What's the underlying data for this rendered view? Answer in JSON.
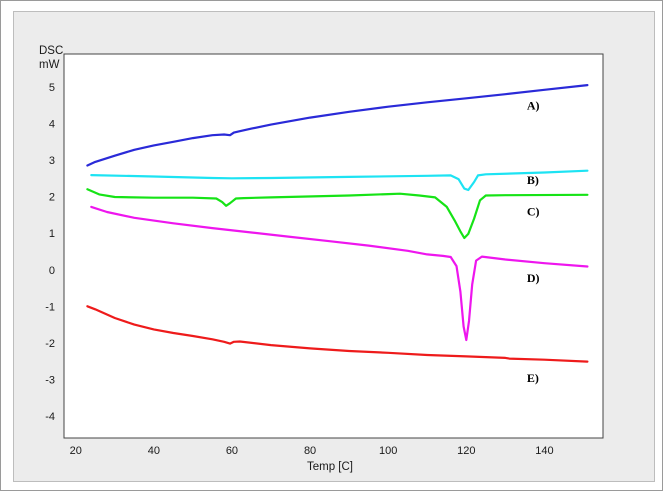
{
  "chart_data": {
    "type": "line",
    "title": "",
    "ylabel_line1": "DSC",
    "ylabel_line2": "mW",
    "xlabel": "Temp  [C]",
    "xlim": [
      17,
      155
    ],
    "ylim": [
      -4.6,
      5.9
    ],
    "xticks": [
      20,
      40,
      60,
      80,
      100,
      120,
      140
    ],
    "yticks": [
      -4,
      -3,
      -2,
      -1,
      0,
      1,
      2,
      3,
      4,
      5
    ],
    "grid": false,
    "series": [
      {
        "label": "A)",
        "color": "#2a2ad8",
        "points": [
          [
            23,
            2.85
          ],
          [
            25,
            2.95
          ],
          [
            30,
            3.12
          ],
          [
            35,
            3.28
          ],
          [
            40,
            3.4
          ],
          [
            45,
            3.5
          ],
          [
            50,
            3.6
          ],
          [
            55,
            3.68
          ],
          [
            58,
            3.7
          ],
          [
            59.5,
            3.68
          ],
          [
            60.5,
            3.75
          ],
          [
            62,
            3.79
          ],
          [
            65,
            3.86
          ],
          [
            70,
            3.97
          ],
          [
            80,
            4.16
          ],
          [
            90,
            4.32
          ],
          [
            100,
            4.46
          ],
          [
            110,
            4.58
          ],
          [
            120,
            4.69
          ],
          [
            130,
            4.8
          ],
          [
            140,
            4.92
          ],
          [
            151,
            5.05
          ]
        ]
      },
      {
        "label": "B)",
        "color": "#1de3f3",
        "points": [
          [
            24,
            2.59
          ],
          [
            40,
            2.55
          ],
          [
            55,
            2.51
          ],
          [
            60,
            2.5
          ],
          [
            70,
            2.51
          ],
          [
            90,
            2.54
          ],
          [
            110,
            2.57
          ],
          [
            116,
            2.58
          ],
          [
            118,
            2.48
          ],
          [
            119.5,
            2.22
          ],
          [
            120.5,
            2.18
          ],
          [
            122,
            2.4
          ],
          [
            123,
            2.58
          ],
          [
            125,
            2.61
          ],
          [
            140,
            2.66
          ],
          [
            151,
            2.71
          ]
        ]
      },
      {
        "label": "C)",
        "color": "#16e316",
        "points": [
          [
            23,
            2.2
          ],
          [
            26,
            2.06
          ],
          [
            30,
            1.99
          ],
          [
            40,
            1.97
          ],
          [
            50,
            1.97
          ],
          [
            56,
            1.95
          ],
          [
            57.5,
            1.85
          ],
          [
            58.5,
            1.75
          ],
          [
            59.5,
            1.82
          ],
          [
            61,
            1.95
          ],
          [
            63,
            1.96
          ],
          [
            70,
            1.98
          ],
          [
            90,
            2.03
          ],
          [
            100,
            2.07
          ],
          [
            103,
            2.08
          ],
          [
            108,
            2.03
          ],
          [
            112,
            1.98
          ],
          [
            115,
            1.72
          ],
          [
            117,
            1.35
          ],
          [
            118.5,
            1.05
          ],
          [
            119.5,
            0.87
          ],
          [
            120.5,
            0.98
          ],
          [
            122,
            1.4
          ],
          [
            123.5,
            1.9
          ],
          [
            125,
            2.03
          ],
          [
            130,
            2.04
          ],
          [
            151,
            2.05
          ]
        ]
      },
      {
        "label": "D)",
        "color": "#ee16ee",
        "points": [
          [
            24,
            1.72
          ],
          [
            28,
            1.58
          ],
          [
            35,
            1.42
          ],
          [
            45,
            1.27
          ],
          [
            55,
            1.14
          ],
          [
            65,
            1.02
          ],
          [
            75,
            0.9
          ],
          [
            85,
            0.78
          ],
          [
            95,
            0.66
          ],
          [
            105,
            0.52
          ],
          [
            110,
            0.42
          ],
          [
            114,
            0.38
          ],
          [
            116,
            0.35
          ],
          [
            117.5,
            0.1
          ],
          [
            118.5,
            -0.6
          ],
          [
            119.3,
            -1.55
          ],
          [
            120,
            -1.92
          ],
          [
            120.7,
            -1.4
          ],
          [
            121.5,
            -0.4
          ],
          [
            122.5,
            0.25
          ],
          [
            124,
            0.36
          ],
          [
            130,
            0.28
          ],
          [
            140,
            0.18
          ],
          [
            151,
            0.09
          ]
        ]
      },
      {
        "label": "E)",
        "color": "#ee1b1b",
        "points": [
          [
            23,
            -1.0
          ],
          [
            25,
            -1.08
          ],
          [
            30,
            -1.32
          ],
          [
            35,
            -1.5
          ],
          [
            40,
            -1.63
          ],
          [
            45,
            -1.73
          ],
          [
            50,
            -1.81
          ],
          [
            55,
            -1.9
          ],
          [
            58,
            -1.97
          ],
          [
            59.5,
            -2.02
          ],
          [
            60.5,
            -1.97
          ],
          [
            62,
            -1.96
          ],
          [
            70,
            -2.06
          ],
          [
            80,
            -2.15
          ],
          [
            90,
            -2.22
          ],
          [
            100,
            -2.27
          ],
          [
            110,
            -2.33
          ],
          [
            120,
            -2.37
          ],
          [
            130,
            -2.41
          ],
          [
            131,
            -2.43
          ],
          [
            140,
            -2.46
          ],
          [
            151,
            -2.51
          ]
        ]
      }
    ],
    "annotations": [
      {
        "text": "A)",
        "x": 135.5,
        "y": 4.38
      },
      {
        "text": "B)",
        "x": 135.5,
        "y": 2.35
      },
      {
        "text": "C)",
        "x": 135.5,
        "y": 1.49
      },
      {
        "text": "D)",
        "x": 135.5,
        "y": -0.34
      },
      {
        "text": "E)",
        "x": 135.5,
        "y": -3.07
      }
    ]
  }
}
